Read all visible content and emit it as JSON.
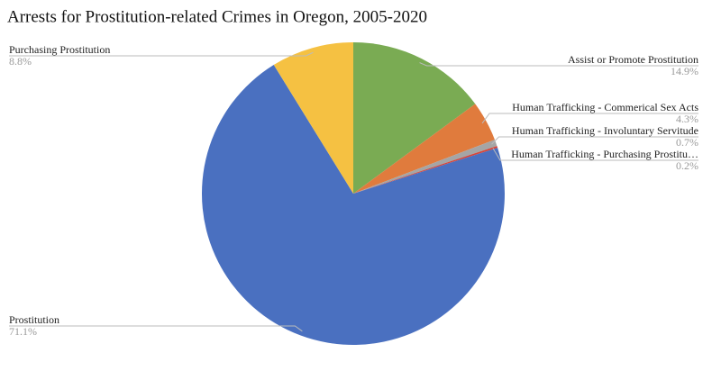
{
  "chart_data": {
    "type": "pie",
    "title": "Arrests for Prostitution-related Crimes in Oregon, 2005-2020",
    "categories": [
      "Assist or Promote Prostitution",
      "Human Trafficking - Commerical Sex Acts",
      "Human Trafficking - Involuntary Servitude",
      "Human Trafficking - Purchasing Prostitu…",
      "Prostitution",
      "Purchasing Prostitution"
    ],
    "values": [
      14.9,
      4.3,
      0.7,
      0.2,
      71.1,
      8.8
    ],
    "value_labels": [
      "14.9%",
      "4.3%",
      "0.7%",
      "0.2%",
      "71.1%",
      "8.8%"
    ],
    "colors": [
      "#7aab53",
      "#e07b3d",
      "#a5a5a5",
      "#d6443a",
      "#4a70c0",
      "#f5c142"
    ]
  }
}
